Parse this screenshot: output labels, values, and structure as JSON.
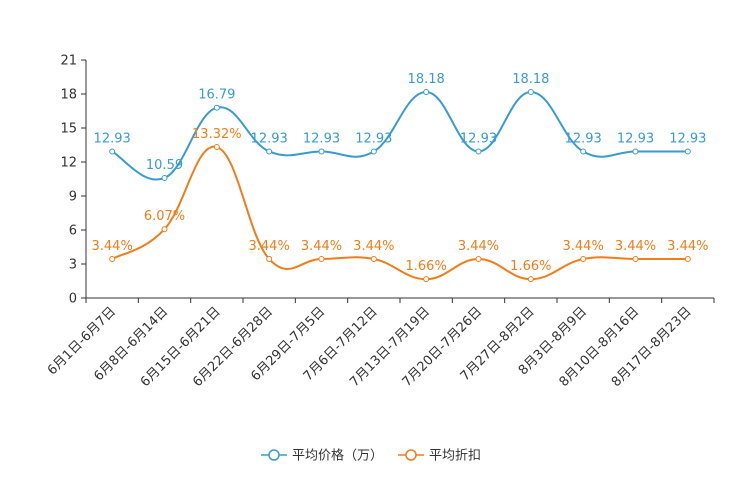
{
  "chart_data": {
    "type": "line",
    "title": "",
    "xlabel": "",
    "ylabel": "",
    "ylim": [
      0,
      21
    ],
    "yticks": [
      0,
      3,
      6,
      9,
      12,
      15,
      18,
      21
    ],
    "ytick_labels": [
      "0",
      "3",
      "6",
      "9",
      "12",
      "15",
      "18",
      "21"
    ],
    "grid": false,
    "legend_position": "bottom-center",
    "categories": [
      "6月1日-6月7日",
      "6月8日-6月14日",
      "6月15日-6月21日",
      "6月22日-6月28日",
      "6月29日-7月5日",
      "7月6日-7月12日",
      "7月13日-7月19日",
      "7月20日-7月26日",
      "7月27日-8月2日",
      "8月3日-8月9日",
      "8月10日-8月16日",
      "8月17日-8月23日"
    ],
    "series": [
      {
        "name": "平均价格（万）",
        "color": "#3a9bd0",
        "values": [
          12.93,
          10.59,
          16.79,
          12.93,
          12.93,
          12.93,
          18.18,
          12.93,
          18.18,
          12.93,
          12.93,
          12.93
        ],
        "labels": [
          "12.93",
          "10.59",
          "16.79",
          "12.93",
          "12.93",
          "12.93",
          "18.18",
          "12.93",
          "18.18",
          "12.93",
          "12.93",
          "12.93"
        ]
      },
      {
        "name": "平均折扣",
        "color": "#f07d1a",
        "values": [
          3.44,
          6.07,
          13.32,
          3.44,
          3.44,
          3.44,
          1.66,
          3.44,
          1.66,
          3.44,
          3.44,
          3.44
        ],
        "labels": [
          "3.44%",
          "6.07%",
          "13.32%",
          "3.44%",
          "3.44%",
          "3.44%",
          "1.66%",
          "3.44%",
          "1.66%",
          "3.44%",
          "3.44%",
          "3.44%"
        ]
      }
    ]
  }
}
